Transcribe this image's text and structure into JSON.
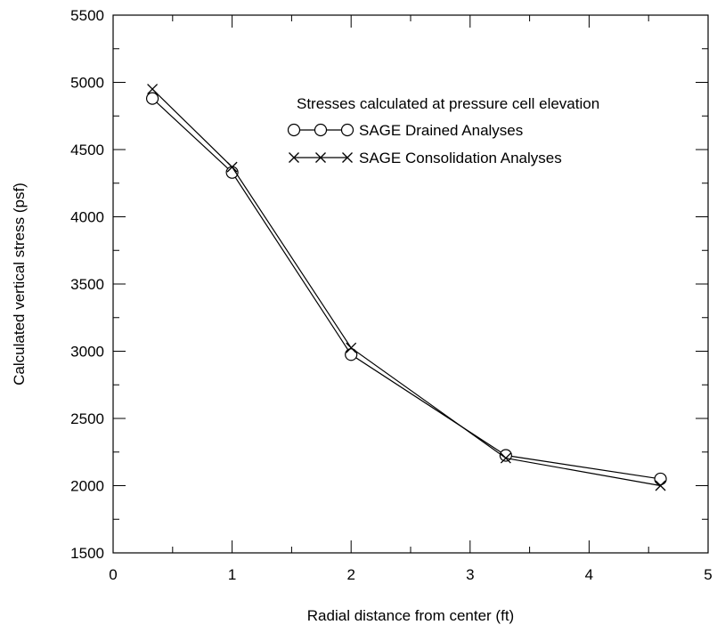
{
  "chart_data": {
    "type": "line",
    "title": "",
    "xlabel": "Radial distance from center (ft)",
    "ylabel": "Calculated vertical stress (psf)",
    "xlim": [
      0,
      5
    ],
    "ylim": [
      1500,
      5500
    ],
    "x_ticks": [
      0,
      1,
      2,
      3,
      4,
      5
    ],
    "y_ticks": [
      1500,
      2000,
      2500,
      3000,
      3500,
      4000,
      4500,
      5000,
      5500
    ],
    "grid": false,
    "legend_title": "Stresses calculated at pressure cell elevation",
    "legend_position": "top-right",
    "series": [
      {
        "name": "SAGE Drained Analyses",
        "marker": "circle",
        "x": [
          0.33,
          1.0,
          2.0,
          3.3,
          4.6
        ],
        "y": [
          4880,
          4330,
          2975,
          2225,
          2050
        ]
      },
      {
        "name": "SAGE Consolidation Analyses",
        "marker": "x",
        "x": [
          0.33,
          1.0,
          2.0,
          3.3,
          4.6
        ],
        "y": [
          4950,
          4370,
          3025,
          2205,
          2000
        ]
      }
    ]
  }
}
